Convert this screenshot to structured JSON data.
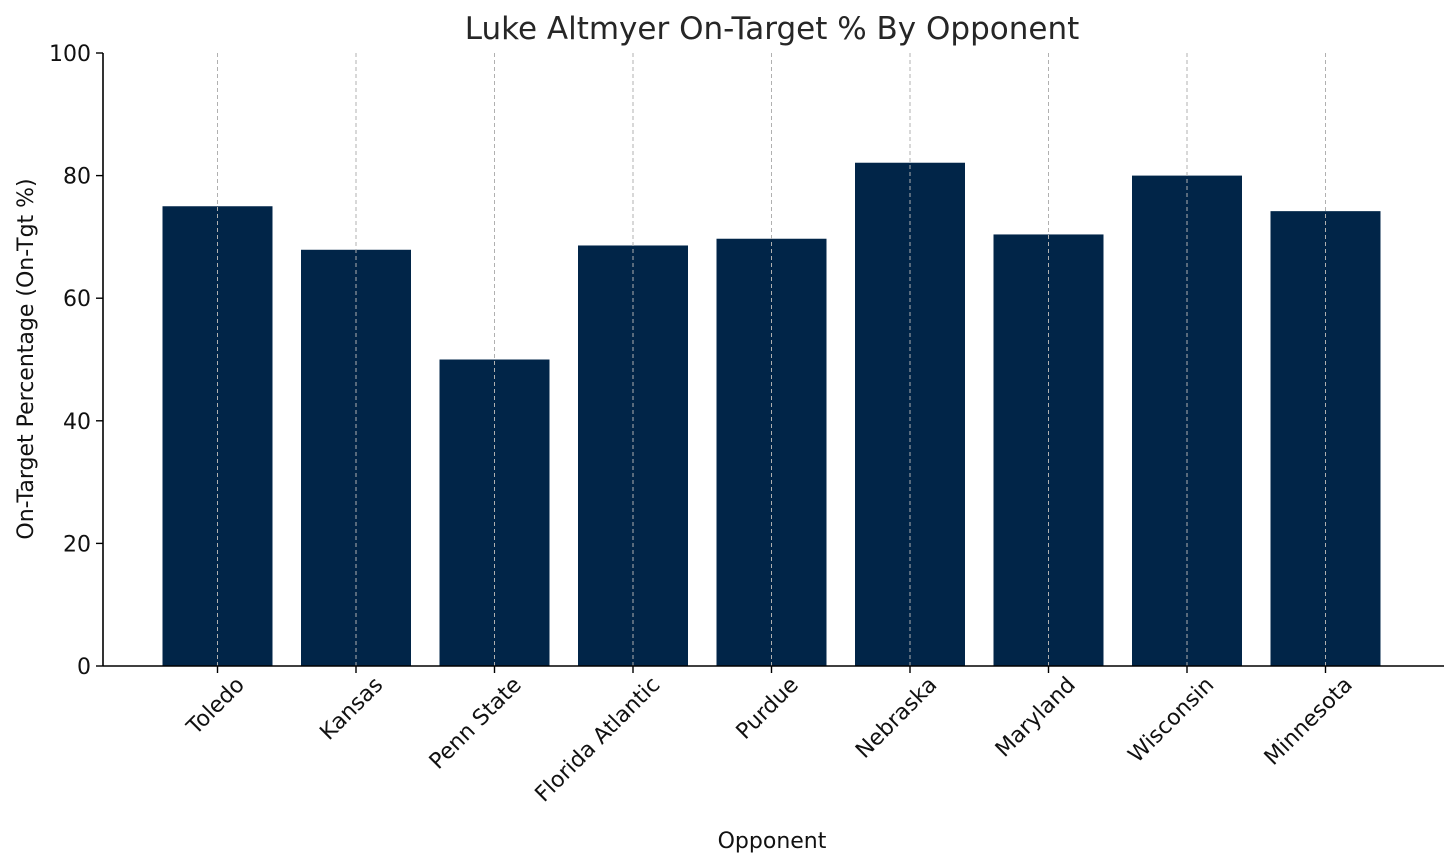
{
  "chart_data": {
    "type": "bar",
    "title": "Luke Altmyer On-Target % By Opponent",
    "xlabel": "Opponent",
    "ylabel": "On-Target Percentage (On-Tgt %)",
    "categories": [
      "Toledo",
      "Kansas",
      "Penn State",
      "Florida Atlantic",
      "Purdue",
      "Nebraska",
      "Maryland",
      "Wisconsin",
      "Minnesota"
    ],
    "values": [
      75.0,
      67.9,
      50.0,
      68.6,
      69.7,
      82.1,
      70.4,
      80.0,
      74.2
    ],
    "ylim": [
      0,
      100
    ],
    "yticks": [
      0,
      20,
      40,
      60,
      80,
      100
    ],
    "ytick_labels": [
      "0",
      "20",
      "40",
      "60",
      "80",
      "100"
    ],
    "grid": "vertical dashed (x-axis only)",
    "bar_color": "#012548",
    "grid_color": "#b0b0b0",
    "legend": "none"
  }
}
